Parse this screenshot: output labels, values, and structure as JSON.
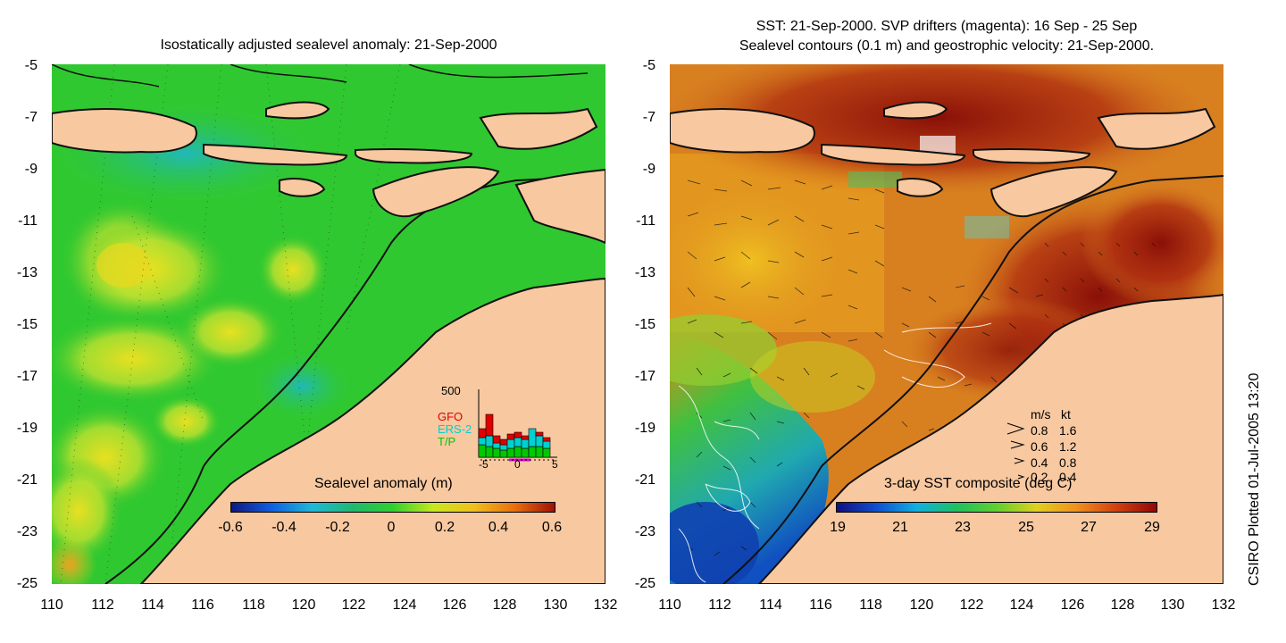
{
  "left": {
    "title": "Isostatically adjusted sealevel anomaly: 21-Sep-2000",
    "colorbar_label": "Sealevel anomaly (m)",
    "colorbar_ticks": [
      "-0.6",
      "-0.4",
      "-0.2",
      "0",
      "0.2",
      "0.4",
      "0.6"
    ],
    "colorbar_colors": [
      "#101880",
      "#1060e0",
      "#20b8d8",
      "#20b870",
      "#30d030",
      "#c8e820",
      "#f0c020",
      "#e87010",
      "#a01008"
    ],
    "histogram": {
      "y_max_label": "500",
      "x_ticks": [
        "-5",
        "0",
        "5"
      ],
      "legend": [
        {
          "label": "GFO",
          "color": "#e00000"
        },
        {
          "label": "ERS-2",
          "color": "#00d0d0"
        },
        {
          "label": "T/P",
          "color": "#00c800"
        }
      ]
    }
  },
  "right": {
    "title_line1": "SST: 21-Sep-2000. SVP drifters (magenta): 16 Sep - 25 Sep",
    "title_line2": "Sealevel contours (0.1 m) and geostrophic velocity: 21-Sep-2000.",
    "colorbar_label": "3-day SST composite (deg C)",
    "colorbar_ticks": [
      "19",
      "21",
      "23",
      "25",
      "27",
      "29"
    ],
    "colorbar_colors": [
      "#101080",
      "#1050d0",
      "#10b0e0",
      "#20c060",
      "#60d030",
      "#e0d020",
      "#f09020",
      "#d04010",
      "#900808"
    ],
    "velocity_legend": {
      "header_ms": "m/s",
      "header_kt": "kt",
      "rows": [
        {
          "ms": "0.8",
          "kt": "1.6"
        },
        {
          "ms": "0.6",
          "kt": "1.2"
        },
        {
          "ms": "0.4",
          "kt": "0.8"
        },
        {
          "ms": "0.2",
          "kt": "0.4"
        }
      ]
    }
  },
  "axes": {
    "y_ticks": [
      "-5",
      "-7",
      "-9",
      "-11",
      "-13",
      "-15",
      "-17",
      "-19",
      "-21",
      "-23",
      "-25"
    ],
    "x_ticks": [
      "110",
      "112",
      "114",
      "116",
      "118",
      "120",
      "122",
      "124",
      "126",
      "128",
      "130",
      "132"
    ]
  },
  "credit": "CSIRO Plotted 01-Jul-2005 13:20",
  "colors": {
    "land": "#f8c8a0",
    "sea_base_left": "#30c830",
    "sea_base_right": "#d88020"
  }
}
